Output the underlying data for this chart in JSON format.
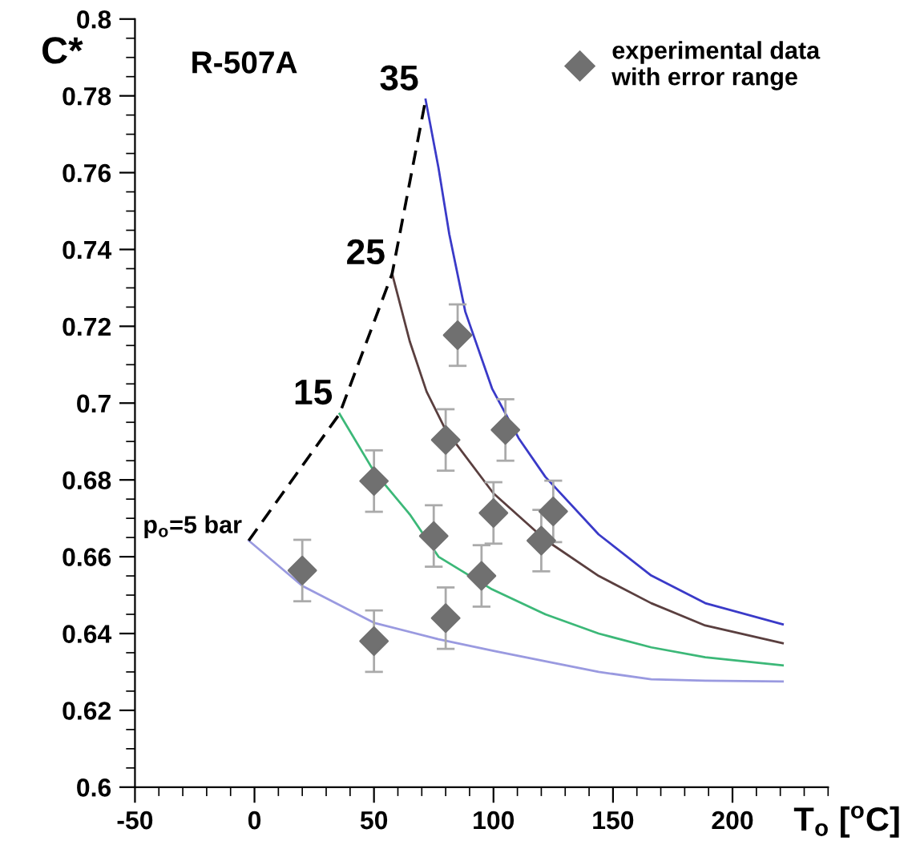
{
  "chart_data": {
    "type": "line",
    "title": "R-507A",
    "xlabel": "T$_{o}$ [$^{o}$C]",
    "ylabel": "C*",
    "xlim": [
      -50,
      240
    ],
    "ylim": [
      0.6,
      0.8
    ],
    "xticks": [
      -50,
      0,
      50,
      100,
      150,
      200
    ],
    "yticks": [
      0.6,
      0.62,
      0.64,
      0.66,
      0.68,
      0.7,
      0.72,
      0.74,
      0.76,
      0.78,
      0.8
    ],
    "grid": false,
    "legend": "top right",
    "tick_labels": true,
    "series": [
      {
        "color": "#9a9ae0",
        "x": [
          -2.4,
          20,
          50,
          77,
          100,
          121.7,
          144,
          166,
          188.6,
          221
        ],
        "values": [
          0.6642,
          0.6524,
          0.6428,
          0.6385,
          0.6355,
          0.6328,
          0.63,
          0.6281,
          0.6277,
          0.6275
        ]
      },
      {
        "color": "#3cb878",
        "x": [
          35.6,
          50,
          65,
          77,
          99.4,
          121.7,
          144,
          166,
          188.6,
          221
        ],
        "values": [
          0.6972,
          0.6822,
          0.671,
          0.66,
          0.6515,
          0.645,
          0.64,
          0.6364,
          0.6338,
          0.6317
        ]
      },
      {
        "color": "#5a3f3f",
        "x": [
          57.6,
          65,
          72,
          80,
          100,
          121.7,
          144,
          166,
          188.6,
          221
        ],
        "values": [
          0.7337,
          0.716,
          0.703,
          0.693,
          0.6765,
          0.6644,
          0.655,
          0.6479,
          0.6421,
          0.6375
        ]
      },
      {
        "color": "#3a3ac8",
        "x": [
          71.6,
          77,
          81.5,
          88.2,
          99.4,
          110.5,
          121.7,
          144,
          166,
          188.6,
          221
        ],
        "values": [
          0.779,
          0.7612,
          0.744,
          0.7238,
          0.7038,
          0.6909,
          0.6808,
          0.6658,
          0.6551,
          0.6479,
          0.6424
        ]
      },
      {
        "color": "#000000",
        "line_style": "dashed",
        "x": [
          -2.4,
          35.6,
          57.6,
          71.6
        ],
        "values": [
          0.6642,
          0.6972,
          0.7337,
          0.779
        ]
      },
      {
        "type": "scatter",
        "name": "experimental data\nwith error range",
        "color": "#707070",
        "marker": "diamond",
        "x": [
          20,
          50,
          50,
          75,
          80,
          80,
          85,
          95,
          100,
          105,
          120,
          125
        ],
        "values": [
          0.6564,
          0.6797,
          0.638,
          0.6654,
          0.6904,
          0.644,
          0.7177,
          0.655,
          0.6714,
          0.693,
          0.6642,
          0.6718
        ],
        "errors": [
          0.008,
          0.008,
          0.008,
          0.008,
          0.008,
          0.008,
          0.008,
          0.008,
          0.008,
          0.008,
          0.008,
          0.008
        ]
      }
    ],
    "annotations": [
      {
        "text": "35",
        "x": 71.6,
        "y": 0.779
      },
      {
        "text": "25",
        "x": 57.6,
        "y": 0.7337
      },
      {
        "text": "15",
        "x": 35.6,
        "y": 0.6972
      },
      {
        "text": "p$_{o}$=5 bar",
        "x": -2.4,
        "y": 0.6642
      }
    ]
  }
}
